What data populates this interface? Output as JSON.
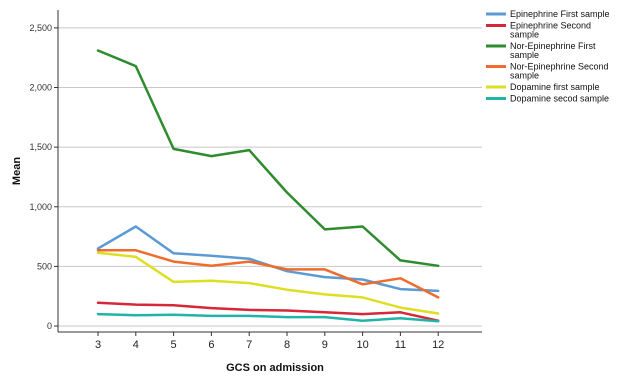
{
  "chart_data": {
    "type": "line",
    "title": "",
    "xlabel": "GCS on admission",
    "ylabel": "Mean",
    "x": [
      3,
      4,
      5,
      6,
      7,
      8,
      9,
      10,
      11,
      12
    ],
    "x_tick_labels": [
      "3",
      "4",
      "5",
      "6",
      "7",
      "8",
      "9",
      "10",
      "11",
      "12"
    ],
    "ylim": [
      -50,
      2650
    ],
    "y_ticks": [
      0,
      500,
      1000,
      1500,
      2000,
      2500
    ],
    "y_tick_labels": [
      "0",
      "500",
      "1,000",
      "1,500",
      "2,000",
      "2,500"
    ],
    "grid": true,
    "legend_position": "top-right",
    "series": [
      {
        "name": "Epinephrine First sample",
        "color": "#5b9bd5",
        "values": [
          650,
          835,
          610,
          590,
          565,
          460,
          410,
          390,
          310,
          295
        ]
      },
      {
        "name": "Epinephrine Second sample",
        "color": "#d62839",
        "values": [
          195,
          180,
          175,
          150,
          135,
          130,
          115,
          100,
          115,
          45
        ]
      },
      {
        "name": "Nor-Epinephrine First sample",
        "color": "#2e8b2e",
        "values": [
          2310,
          2180,
          1485,
          1425,
          1475,
          1120,
          810,
          835,
          550,
          505
        ]
      },
      {
        "name": "Nor-Epinephrine Second sample",
        "color": "#ee6c2d",
        "values": [
          635,
          635,
          540,
          505,
          540,
          475,
          475,
          350,
          400,
          240
        ]
      },
      {
        "name": "Dopamine first sample",
        "color": "#dede22",
        "values": [
          615,
          580,
          370,
          380,
          360,
          305,
          265,
          240,
          155,
          105
        ]
      },
      {
        "name": "Dopamine secod sample",
        "color": "#22b3a8",
        "values": [
          100,
          90,
          95,
          85,
          85,
          75,
          75,
          45,
          65,
          40
        ]
      }
    ]
  }
}
